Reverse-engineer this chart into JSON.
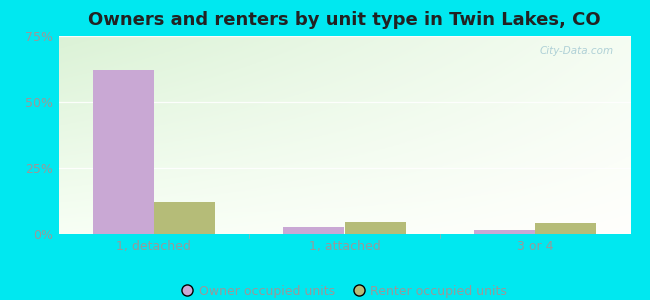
{
  "title": "Owners and renters by unit type in Twin Lakes, CO",
  "categories": [
    "1, detached",
    "1, attached",
    "3 or 4"
  ],
  "owner_values": [
    62,
    2.5,
    1.5
  ],
  "renter_values": [
    12,
    4.5,
    4.0
  ],
  "owner_color": "#c9a8d4",
  "renter_color": "#b5bc78",
  "ylim": [
    0,
    75
  ],
  "yticks": [
    0,
    25,
    50,
    75
  ],
  "ytick_labels": [
    "0%",
    "25%",
    "50%",
    "75%"
  ],
  "outer_bg": "#00e8f0",
  "watermark": "City-Data.com",
  "legend_owner": "Owner occupied units",
  "legend_renter": "Renter occupied units",
  "bar_width": 0.32,
  "title_fontsize": 13,
  "tick_color": "#999999",
  "title_color": "#222222"
}
